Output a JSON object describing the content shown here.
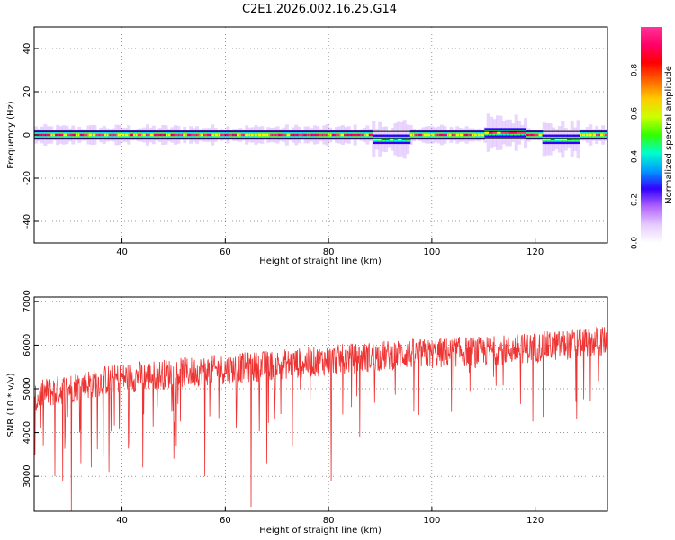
{
  "figure_title": "C2E1.2026.002.16.25.G14",
  "chart_data": [
    {
      "type": "heatmap",
      "title": "",
      "xlabel": "Height of straight line (km)",
      "ylabel": "Frequency (Hz)",
      "xlim": [
        23,
        134
      ],
      "ylim": [
        -50,
        50
      ],
      "x_ticks": [
        40,
        60,
        80,
        100,
        120
      ],
      "x_tick_labels": [
        "40",
        "60",
        "80",
        "100",
        "120"
      ],
      "y_ticks": [
        40,
        20,
        0,
        -20,
        -40
      ],
      "y_tick_labels": [
        "40",
        "20",
        "0",
        "-20",
        "-40"
      ],
      "colorbar": {
        "label": "Normalized spectral amplitude",
        "range": [
          0,
          1
        ],
        "ticks": [
          0.0,
          0.2,
          0.4,
          0.6,
          0.8
        ],
        "tick_labels": [
          "0.0",
          "0.2",
          "0.4",
          "0.6",
          "0.8"
        ],
        "colors": [
          "#ffffff",
          "#e6ccff",
          "#b366ff",
          "#3300ff",
          "#0099ff",
          "#00ffcc",
          "#33ff00",
          "#ccff00",
          "#ffcc00",
          "#ff6600",
          "#ff0000",
          "#ff0066",
          "#ff3399"
        ]
      },
      "band": {
        "center_freq_hz": 0,
        "disturbed_segments": [
          {
            "x_range": [
              88,
              95
            ],
            "offset_hz": -2
          },
          {
            "x_range": [
              110,
              118
            ],
            "offset_hz": 1
          },
          {
            "x_range": [
              121,
              128
            ],
            "offset_hz": -2
          }
        ]
      }
    },
    {
      "type": "line",
      "title": "",
      "xlabel": "Height of straight line (km)",
      "ylabel": "SNR (10 * v/v)",
      "xlim": [
        23,
        134
      ],
      "ylim": [
        2200,
        7100
      ],
      "x_ticks": [
        40,
        60,
        80,
        100,
        120
      ],
      "x_tick_labels": [
        "40",
        "60",
        "80",
        "100",
        "120"
      ],
      "y_ticks": [
        7000,
        6000,
        5000,
        4000,
        3000
      ],
      "y_tick_labels": [
        "7000",
        "6000",
        "5000",
        "4000",
        "3000"
      ],
      "series": [
        {
          "name": "SNR",
          "color": "#ee3333",
          "x": [
            23,
            25,
            27,
            29,
            31,
            33,
            35,
            37,
            40,
            45,
            50,
            55,
            60,
            65,
            70,
            75,
            80,
            85,
            90,
            95,
            100,
            105,
            110,
            115,
            120,
            125,
            130,
            134
          ],
          "values": [
            4700,
            4900,
            4950,
            5000,
            5050,
            5100,
            5150,
            5200,
            5250,
            5300,
            5350,
            5400,
            5450,
            5500,
            5550,
            5600,
            5650,
            5700,
            5750,
            5800,
            5800,
            5850,
            5850,
            5900,
            5950,
            6000,
            6050,
            6100
          ],
          "deep_dips": [
            {
              "x": 27.0,
              "value": 3000
            },
            {
              "x": 28.5,
              "value": 2900
            },
            {
              "x": 30.2,
              "value": 2200
            },
            {
              "x": 32.0,
              "value": 3300
            },
            {
              "x": 34.0,
              "value": 3200
            },
            {
              "x": 37.5,
              "value": 3100
            },
            {
              "x": 44.0,
              "value": 3200
            },
            {
              "x": 50.0,
              "value": 3400
            },
            {
              "x": 56.0,
              "value": 3000
            },
            {
              "x": 65.0,
              "value": 2300
            },
            {
              "x": 68.0,
              "value": 3300
            },
            {
              "x": 73.0,
              "value": 3700
            },
            {
              "x": 80.5,
              "value": 2900
            },
            {
              "x": 86.0,
              "value": 3900
            },
            {
              "x": 128.0,
              "value": 4300
            }
          ]
        }
      ]
    }
  ]
}
